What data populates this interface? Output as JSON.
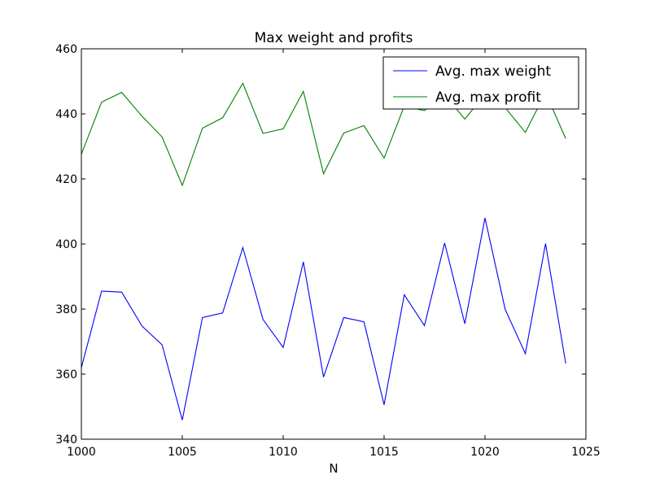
{
  "chart_data": {
    "type": "line",
    "title": "Max weight and profits",
    "xlabel": "N",
    "ylabel": "",
    "xlim": [
      1000,
      1025
    ],
    "ylim": [
      340,
      460
    ],
    "xticks": [
      1000,
      1005,
      1010,
      1015,
      1020,
      1025
    ],
    "yticks": [
      340,
      360,
      380,
      400,
      420,
      440,
      460
    ],
    "grid": false,
    "legend_position": "top-right",
    "x": [
      1000,
      1001,
      1002,
      1003,
      1004,
      1005,
      1006,
      1007,
      1008,
      1009,
      1010,
      1011,
      1012,
      1013,
      1014,
      1015,
      1016,
      1017,
      1018,
      1019,
      1020,
      1021,
      1022,
      1023,
      1024
    ],
    "series": [
      {
        "name": "Avg. max weight",
        "color": "#0000ff",
        "values": [
          362.0,
          385.5,
          385.2,
          374.8,
          369.0,
          345.9,
          377.4,
          378.8,
          398.9,
          376.8,
          368.2,
          394.5,
          359.1,
          377.4,
          376.1,
          350.6,
          384.4,
          374.9,
          400.3,
          375.5,
          408.0,
          379.9,
          366.3,
          400.1,
          363.3
        ]
      },
      {
        "name": "Avg. max profit",
        "color": "#008000",
        "values": [
          427.6,
          443.6,
          446.6,
          439.3,
          432.9,
          418.0,
          435.6,
          438.8,
          449.4,
          434.0,
          435.4,
          446.9,
          421.6,
          434.1,
          436.4,
          426.4,
          442.4,
          441.0,
          445.8,
          438.4,
          446.0,
          441.9,
          434.3,
          446.5,
          432.4
        ]
      }
    ]
  }
}
